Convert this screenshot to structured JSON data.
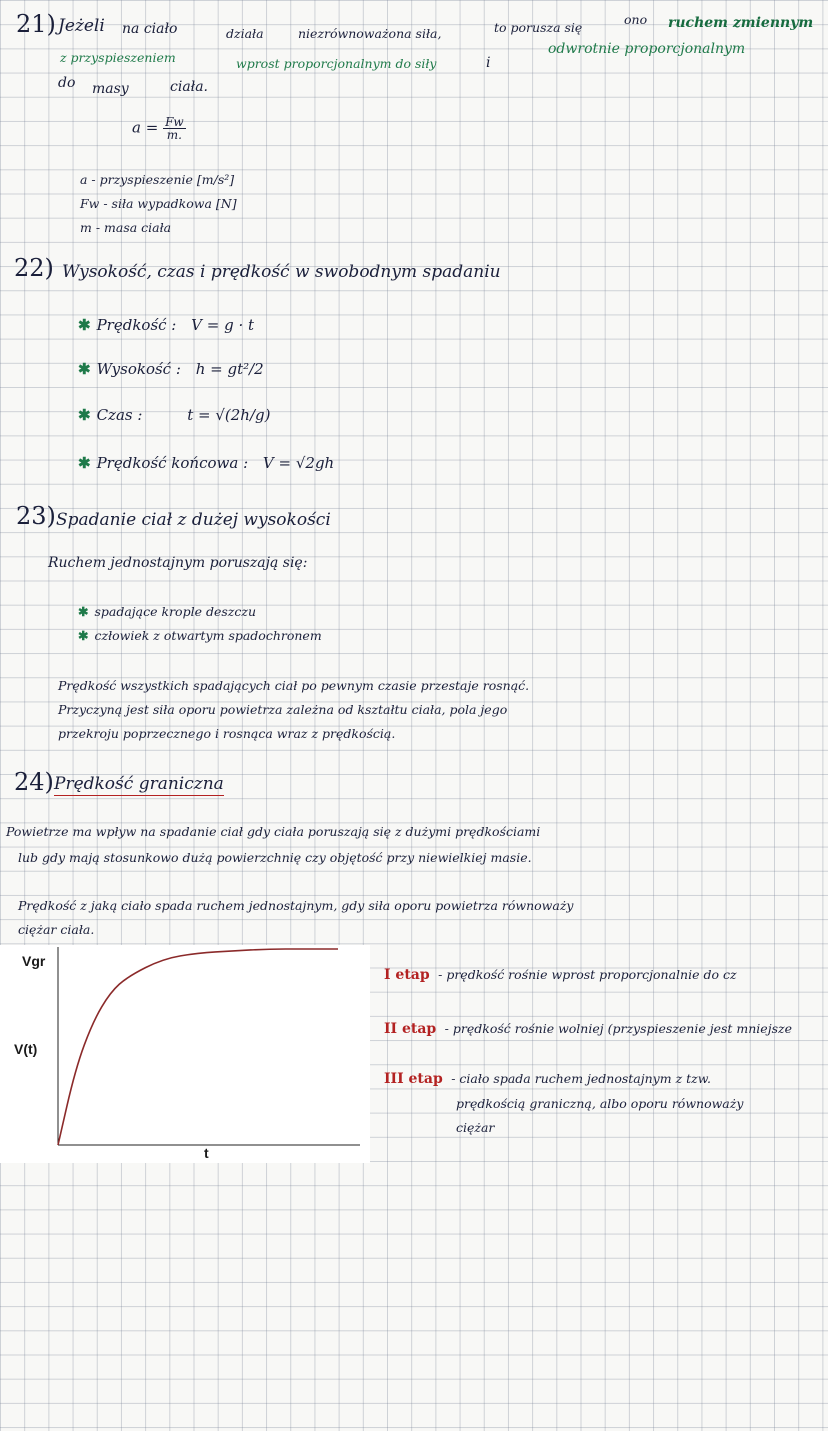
{
  "s21": {
    "number": "21)",
    "line1": [
      "Jeżeli",
      "na ciało",
      "działa",
      "niezrównoważona siła,",
      "to porusza się",
      "ono",
      "ruchem zmiennym"
    ],
    "line2": [
      "z przyspieszeniem",
      "wprost proporcjonalnym do siły",
      "i",
      "odwrotnie proporcjonalnym"
    ],
    "line3": [
      "do",
      "masy",
      "ciała."
    ],
    "formula": {
      "lhs": "a =",
      "num": "Fw",
      "den": "m."
    },
    "legend": [
      "a - przyspieszenie [m/s²]",
      "Fw - siła wypadkowa [N]",
      "m - masa ciała"
    ]
  },
  "s22": {
    "number": "22)",
    "title": "Wysokość, czas i prędkość w swobodnym spadaniu",
    "items": [
      {
        "label": "Prędkość :",
        "formula": "V = g · t"
      },
      {
        "label": "Wysokość :",
        "formula": "h = gt²/2"
      },
      {
        "label": "Czas :",
        "formula": "t = √(2h/g)"
      },
      {
        "label": "Prędkość końcowa :",
        "formula": "V = √2gh"
      }
    ]
  },
  "s23": {
    "number": "23)",
    "title": "Spadanie ciał z dużej wysokości",
    "subtitle": "Ruchem jednostajnym poruszają się:",
    "items": [
      "spadające krople deszczu",
      "człowiek z otwartym spadochronem"
    ],
    "para": [
      "Prędkość wszystkich spadających ciał po pewnym czasie przestaje rosnąć.",
      "Przyczyną jest siła oporu powietrza zależna od kształtu ciała, pola jego",
      "przekroju poprzecznego i rosnąca wraz z prędkością."
    ]
  },
  "s24": {
    "number": "24)",
    "title": "Prędkość graniczna",
    "para1": [
      "Powietrze ma wpływ na spadanie ciał gdy ciała poruszają się z dużymi prędkościami",
      "lub gdy mają stosunkowo dużą powierzchnię czy objętość przy niewielkiej masie."
    ],
    "para2": [
      "Prędkość z jaką ciało spada ruchem jednostajnym, gdy siła oporu powietrza równoważy",
      "ciężar ciała."
    ],
    "stages": [
      {
        "label": "I etap",
        "text": "- prędkość rośnie wprost proporcjonalnie do cz"
      },
      {
        "label": "II etap",
        "text": "- prędkość rośnie wolniej (przyspieszenie jest mniejsze"
      },
      {
        "label": "III etap",
        "lines": [
          "- ciało spada ruchem jednostajnym z tzw.",
          "prędkością graniczną, albo oporu równoważy",
          "ciężar"
        ]
      }
    ]
  },
  "chart_data": {
    "type": "line",
    "xlabel": "t",
    "ylabel": "V(t)",
    "ytick_label": "Vgr",
    "series": [
      {
        "x": [
          0,
          0.5,
          1,
          1.5,
          2,
          3,
          4,
          5,
          6,
          7,
          8
        ],
        "y": [
          0,
          0.39,
          0.63,
          0.78,
          0.86,
          0.95,
          0.98,
          0.99,
          1.0,
          1.0,
          1.0
        ]
      }
    ],
    "line_color": "#8b2a2a"
  }
}
